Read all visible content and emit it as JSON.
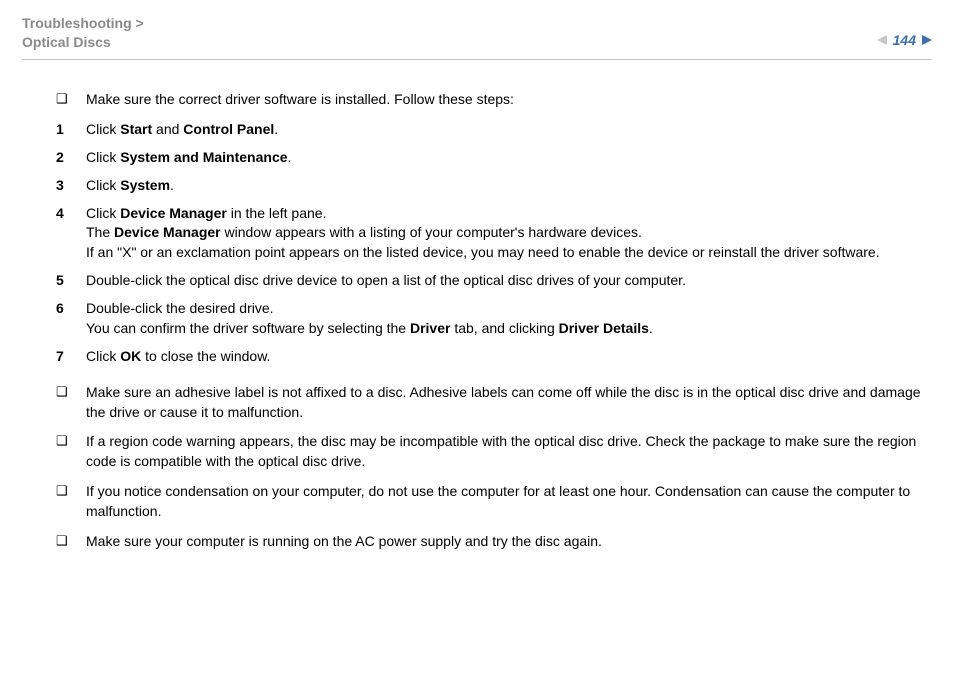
{
  "colors": {
    "text": "#000000",
    "muted": "#8a8a8a",
    "rule": "#c8c8c8",
    "accent": "#3a6fa8",
    "background": "#ffffff"
  },
  "typography": {
    "body_fontsize_pt": 10.5,
    "breadcrumb_fontsize_pt": 10.5,
    "page_number_fontsize_pt": 10.5,
    "line_height": 1.42,
    "font_family": "Arial, Helvetica, sans-serif"
  },
  "header": {
    "breadcrumb_line1": "Troubleshooting >",
    "breadcrumb_line2": "Optical Discs",
    "page_number": "144"
  },
  "content": {
    "intro_bullet": "Make sure the correct driver software is installed. Follow these steps:",
    "bullet_glyph": "❑",
    "steps": [
      {
        "num": "1",
        "parts": [
          "Click ",
          "Start",
          " and ",
          "Control Panel",
          "."
        ],
        "bold_idx": [
          1,
          3
        ]
      },
      {
        "num": "2",
        "parts": [
          "Click ",
          "System and Maintenance",
          "."
        ],
        "bold_idx": [
          1
        ]
      },
      {
        "num": "3",
        "parts": [
          "Click ",
          "System",
          "."
        ],
        "bold_idx": [
          1
        ]
      },
      {
        "num": "4",
        "lines": [
          {
            "parts": [
              "Click ",
              "Device Manager",
              " in the left pane."
            ],
            "bold_idx": [
              1
            ]
          },
          {
            "parts": [
              "The ",
              "Device Manager",
              " window appears with a listing of your computer's hardware devices."
            ],
            "bold_idx": [
              1
            ]
          },
          {
            "parts": [
              "If an \"X\" or an exclamation point appears on the listed device, you may need to enable the device or reinstall the driver software."
            ],
            "bold_idx": []
          }
        ]
      },
      {
        "num": "5",
        "parts": [
          "Double-click the optical disc drive device to open a list of the optical disc drives of your computer."
        ],
        "bold_idx": []
      },
      {
        "num": "6",
        "lines": [
          {
            "parts": [
              "Double-click the desired drive."
            ],
            "bold_idx": []
          },
          {
            "parts": [
              "You can confirm the driver software by selecting the ",
              "Driver",
              " tab, and clicking ",
              "Driver Details",
              "."
            ],
            "bold_idx": [
              1,
              3
            ]
          }
        ]
      },
      {
        "num": "7",
        "parts": [
          "Click ",
          "OK",
          " to close the window."
        ],
        "bold_idx": [
          1
        ]
      }
    ],
    "trailing_bullets": [
      "Make sure an adhesive label is not affixed to a disc. Adhesive labels can come off while the disc is in the optical disc drive and damage the drive or cause it to malfunction.",
      "If a region code warning appears, the disc may be incompatible with the optical disc drive. Check the package to make sure the region code is compatible with the optical disc drive.",
      "If you notice condensation on your computer, do not use the computer for at least one hour. Condensation can cause the computer to malfunction.",
      "Make sure your computer is running on the AC power supply and try the disc again."
    ]
  }
}
